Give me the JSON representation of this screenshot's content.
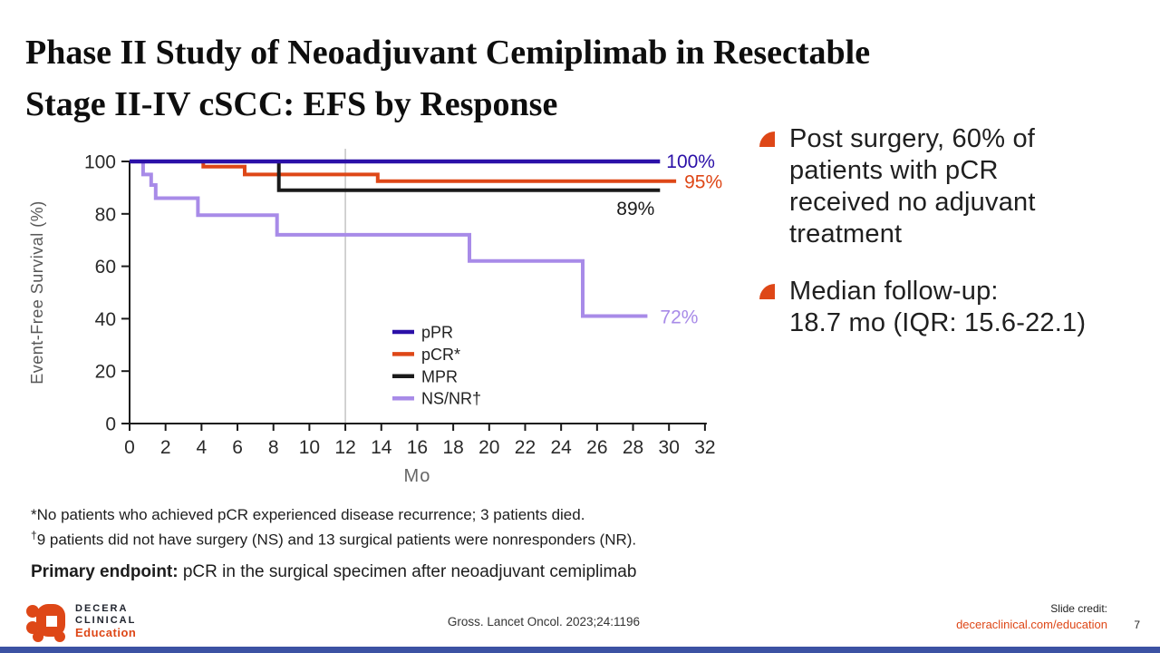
{
  "slide": {
    "title": {
      "line1": "Phase II Study of Neoadjuvant Cemiplimab in Resectable",
      "line2": "Stage II-IV cSCC: EFS by Response"
    }
  },
  "chart_data": {
    "type": "line",
    "subtype": "kaplan-meier-step",
    "xlabel": "Mo",
    "ylabel": "Event-Free Survival (%)",
    "xlim": [
      0,
      32
    ],
    "ylim": [
      0,
      100
    ],
    "x_ticks": [
      0,
      2,
      4,
      6,
      8,
      10,
      12,
      14,
      16,
      18,
      20,
      22,
      24,
      26,
      28,
      30,
      32
    ],
    "y_ticks": [
      0,
      20,
      40,
      60,
      80,
      100
    ],
    "reference_line_x": 12,
    "grid": "off",
    "legend_position": "inside-bottom-center",
    "series": [
      {
        "name": "pPR",
        "color": "#2B10A8",
        "end_label": "100%",
        "label_offset": [
          7,
          7
        ],
        "points": [
          [
            0,
            100
          ],
          [
            29.5,
            100
          ]
        ]
      },
      {
        "name": "pCR*",
        "color": "#DE4717",
        "end_label": "95%",
        "label_offset": [
          9,
          8
        ],
        "points": [
          [
            0,
            100
          ],
          [
            4.1,
            100
          ],
          [
            4.1,
            98
          ],
          [
            6.4,
            98
          ],
          [
            6.4,
            95
          ],
          [
            13.8,
            95
          ],
          [
            13.8,
            92.5
          ],
          [
            30.4,
            92.5
          ]
        ]
      },
      {
        "name": "MPR",
        "color": "#1A1A1A",
        "end_label": "89%",
        "label_offset": [
          -48,
          27
        ],
        "points": [
          [
            0,
            100
          ],
          [
            8.3,
            100
          ],
          [
            8.3,
            89
          ],
          [
            29.5,
            89
          ]
        ]
      },
      {
        "name": "NS/NR†",
        "color": "#A88BE8",
        "end_label": "72%",
        "label_offset": [
          14,
          8
        ],
        "points": [
          [
            0,
            100
          ],
          [
            0.75,
            100
          ],
          [
            0.75,
            95
          ],
          [
            1.2,
            95
          ],
          [
            1.2,
            91
          ],
          [
            1.45,
            91
          ],
          [
            1.45,
            86
          ],
          [
            3.8,
            86
          ],
          [
            3.8,
            79.5
          ],
          [
            8.2,
            79.5
          ],
          [
            8.2,
            72
          ],
          [
            18.9,
            72
          ],
          [
            18.9,
            62
          ],
          [
            25.2,
            62
          ],
          [
            25.2,
            41
          ],
          [
            28.8,
            41
          ]
        ]
      }
    ]
  },
  "bullets": {
    "item1": "Post surgery, 60% of\npatients with pCR\nreceived no adjuvant\ntreatment",
    "item2": "Median follow-up:\n18.7 mo (IQR: 15.6-22.1)"
  },
  "footnotes": {
    "fn1_marker": "*",
    "fn1_text": "No patients who achieved pCR experienced disease recurrence; 3 patients died.",
    "fn2_marker": "†",
    "fn2_text": "9 patients did not have surgery (NS) and 13 surgical patients were nonresponders (NR)."
  },
  "primary_endpoint": {
    "label": "Primary endpoint:",
    "text": " pCR in the surgical specimen after neoadjuvant cemiplimab"
  },
  "footer": {
    "logo_line1": "DECERA",
    "logo_line2": "CLINICAL",
    "logo_line3": "Education",
    "citation": "Gross. Lancet Oncol. 2023;24:1196",
    "credit_label": "Slide credit:",
    "credit_link": "deceraclinical.com/education",
    "page_number": "7"
  },
  "colors": {
    "accent_orange": "#DE4717",
    "deep_blue": "#2B10A8",
    "light_purple": "#A88BE8",
    "curve_black": "#1A1A1A",
    "bottom_bar_blue": "#3C52A3",
    "axis_gray_label": "#595959",
    "reference_line_gray": "#C4C4C4"
  }
}
